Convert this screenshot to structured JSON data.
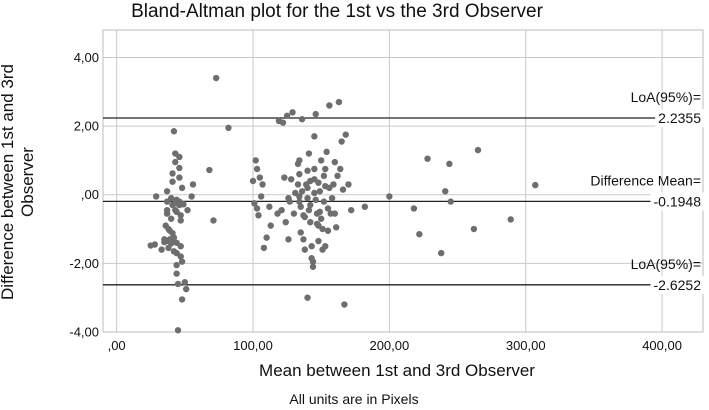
{
  "chart_data": {
    "type": "scatter",
    "title": "Bland-Altman plot for the 1st vs the 3rd Observer",
    "xlabel": "Mean between 1st and 3rd Observer",
    "ylabel_line1": "Difference between 1st and 3rd",
    "ylabel_line2": "Observer",
    "footnote": "All units are in Pixels",
    "xlim": [
      -10,
      430
    ],
    "ylim": [
      -4.0,
      4.8
    ],
    "grid": true,
    "x_ticks": [
      {
        "value": 0,
        "label": ",00"
      },
      {
        "value": 100,
        "label": "100,00"
      },
      {
        "value": 200,
        "label": "200,00"
      },
      {
        "value": 300,
        "label": "300,00"
      },
      {
        "value": 400,
        "label": "400,00"
      }
    ],
    "y_ticks": [
      {
        "value": 4,
        "label": "4,00"
      },
      {
        "value": 2,
        "label": "2,00"
      },
      {
        "value": 0,
        "label": ",00"
      },
      {
        "value": -2,
        "label": "-2,00"
      },
      {
        "value": -4,
        "label": "-4,00"
      }
    ],
    "reference_lines": [
      {
        "name": "upper-loa",
        "value": 2.2355,
        "caption": "LoA(95%)=",
        "value_text": "2.2355"
      },
      {
        "name": "mean-difference",
        "value": -0.1948,
        "caption": "Difference Mean=",
        "value_text": "-0.1948"
      },
      {
        "name": "lower-loa",
        "value": -2.6252,
        "caption": "LoA(95%)=",
        "value_text": "-2.6252"
      }
    ],
    "points": [
      [
        25,
        -1.48
      ],
      [
        28,
        -1.45
      ],
      [
        29,
        -0.05
      ],
      [
        33,
        -1.6
      ],
      [
        35,
        -1.38
      ],
      [
        35,
        -1.3
      ],
      [
        36,
        -0.9
      ],
      [
        37,
        0.1
      ],
      [
        37,
        -0.2
      ],
      [
        37,
        -0.45
      ],
      [
        37,
        -0.55
      ],
      [
        38,
        -1.0
      ],
      [
        38,
        -1.35
      ],
      [
        38,
        -1.55
      ],
      [
        39,
        -1.05
      ],
      [
        39,
        -1.3
      ],
      [
        40,
        -1.42
      ],
      [
        40,
        -0.1
      ],
      [
        40,
        -0.7
      ],
      [
        41,
        -0.3
      ],
      [
        41,
        0.62
      ],
      [
        41,
        0.38
      ],
      [
        41,
        -1.28
      ],
      [
        41,
        -1.12
      ],
      [
        42,
        1.85
      ],
      [
        42,
        -1.65
      ],
      [
        42,
        -1.25
      ],
      [
        43,
        1.2
      ],
      [
        43,
        0.95
      ],
      [
        43,
        -0.25
      ],
      [
        43,
        -0.45
      ],
      [
        44,
        -2.05
      ],
      [
        44,
        -2.3
      ],
      [
        44,
        -0.15
      ],
      [
        44,
        -0.5
      ],
      [
        44,
        -1.4
      ],
      [
        44,
        -1.7
      ],
      [
        45,
        -3.95
      ],
      [
        45,
        -2.6
      ],
      [
        46,
        0.78
      ],
      [
        46,
        0.5
      ],
      [
        46,
        1.1
      ],
      [
        46,
        -0.2
      ],
      [
        46,
        -0.3
      ],
      [
        47,
        -0.75
      ],
      [
        47,
        -1.5
      ],
      [
        47,
        -1.8
      ],
      [
        47,
        -0.6
      ],
      [
        48,
        0.2
      ],
      [
        48,
        -1.95
      ],
      [
        48,
        -3.05
      ],
      [
        49,
        -0.28
      ],
      [
        50,
        -2.55
      ],
      [
        51,
        -2.75
      ],
      [
        52,
        -0.45
      ],
      [
        55,
        -0.05
      ],
      [
        56,
        0.3
      ],
      [
        68,
        0.72
      ],
      [
        71,
        -0.75
      ],
      [
        73,
        3.4
      ],
      [
        82,
        1.95
      ],
      [
        100,
        0.4
      ],
      [
        101,
        -0.25
      ],
      [
        102,
        1.0
      ],
      [
        103,
        0.75
      ],
      [
        103,
        -0.4
      ],
      [
        104,
        -0.6
      ],
      [
        105,
        0.5
      ],
      [
        106,
        -0.05
      ],
      [
        107,
        0.3
      ],
      [
        108,
        -1.55
      ],
      [
        110,
        -1.25
      ],
      [
        112,
        -0.35
      ],
      [
        113,
        -0.9
      ],
      [
        118,
        -0.55
      ],
      [
        119,
        2.15
      ],
      [
        121,
        -0.45
      ],
      [
        122,
        2.1
      ],
      [
        123,
        0.5
      ],
      [
        124,
        -0.8
      ],
      [
        125,
        2.3
      ],
      [
        126,
        -0.1
      ],
      [
        126,
        -1.3
      ],
      [
        127,
        -0.2
      ],
      [
        128,
        0.45
      ],
      [
        129,
        2.4
      ],
      [
        130,
        -0.55
      ],
      [
        131,
        0.05
      ],
      [
        133,
        0.3
      ],
      [
        133,
        0.9
      ],
      [
        134,
        1.0
      ],
      [
        134,
        0.6
      ],
      [
        134,
        -0.05
      ],
      [
        134,
        -0.2
      ],
      [
        135,
        -0.35
      ],
      [
        135,
        -1.1
      ],
      [
        136,
        2.2
      ],
      [
        136,
        0.1
      ],
      [
        137,
        -0.6
      ],
      [
        137,
        -1.3
      ],
      [
        138,
        -0.65
      ],
      [
        138,
        -1.6
      ],
      [
        139,
        0.3
      ],
      [
        140,
        0.7
      ],
      [
        140,
        0.2
      ],
      [
        140,
        -0.1
      ],
      [
        140,
        -3.0
      ],
      [
        141,
        1.2
      ],
      [
        141,
        -0.45
      ],
      [
        142,
        0.4
      ],
      [
        142,
        -0.3
      ],
      [
        142,
        -0.8
      ],
      [
        143,
        -1.5
      ],
      [
        143,
        -1.85
      ],
      [
        144,
        -2.1
      ],
      [
        144,
        -1.95
      ],
      [
        145,
        1.7
      ],
      [
        145,
        0.75
      ],
      [
        145,
        0.45
      ],
      [
        145,
        0.05
      ],
      [
        146,
        2.35
      ],
      [
        146,
        -0.15
      ],
      [
        147,
        -0.55
      ],
      [
        147,
        -0.85
      ],
      [
        148,
        0.35
      ],
      [
        148,
        -0.9
      ],
      [
        148,
        -1.35
      ],
      [
        149,
        0.1
      ],
      [
        149,
        -0.5
      ],
      [
        150,
        1.0
      ],
      [
        150,
        -0.7
      ],
      [
        151,
        -1.0
      ],
      [
        151,
        -1.6
      ],
      [
        152,
        0.55
      ],
      [
        152,
        -0.2
      ],
      [
        153,
        0.75
      ],
      [
        153,
        0.25
      ],
      [
        153,
        -1.5
      ],
      [
        154,
        1.25
      ],
      [
        155,
        -0.4
      ],
      [
        155,
        -1.05
      ],
      [
        156,
        2.6
      ],
      [
        156,
        0.2
      ],
      [
        157,
        -0.55
      ],
      [
        158,
        -0.1
      ],
      [
        159,
        0.3
      ],
      [
        160,
        0.95
      ],
      [
        160,
        -0.55
      ],
      [
        161,
        -0.95
      ],
      [
        162,
        0.55
      ],
      [
        163,
        2.7
      ],
      [
        164,
        0.75
      ],
      [
        165,
        1.55
      ],
      [
        166,
        0.15
      ],
      [
        167,
        -3.2
      ],
      [
        168,
        1.75
      ],
      [
        170,
        0.3
      ],
      [
        172,
        -0.45
      ],
      [
        182,
        -0.35
      ],
      [
        200,
        -0.05
      ],
      [
        218,
        -0.4
      ],
      [
        222,
        -1.15
      ],
      [
        228,
        1.05
      ],
      [
        238,
        -1.7
      ],
      [
        241,
        0.1
      ],
      [
        244,
        0.9
      ],
      [
        245,
        -0.2
      ],
      [
        262,
        -1.0
      ],
      [
        265,
        1.3
      ],
      [
        289,
        -0.72
      ],
      [
        307,
        0.28
      ]
    ]
  }
}
